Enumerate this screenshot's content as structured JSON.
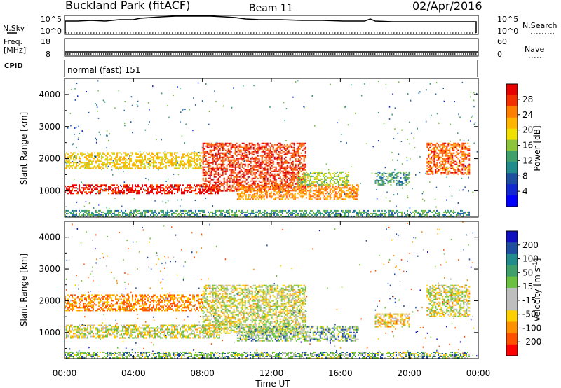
{
  "header": {
    "site": "Buckland Park (fitACF)",
    "beam": "Beam 11",
    "date": "02/Apr/2016"
  },
  "top_strip": {
    "left_label": "N.Sky",
    "left_ticks": [
      "10^5",
      "10^0"
    ],
    "right_ticks": [
      "10^5",
      "10^0"
    ],
    "right_label": "N.Search"
  },
  "freq_strip": {
    "left_label_1": "Freq.",
    "left_label_2": "[MHz]",
    "left_ticks": [
      "18",
      "8"
    ],
    "right_ticks": [
      "60",
      "0"
    ],
    "right_label": "Nave"
  },
  "cpid": {
    "label": "CPID",
    "value": "normal (fast) 151"
  },
  "power_panel": {
    "ylabel": "Slant Range [km]",
    "y_ticks": [
      "4000",
      "3000",
      "2000",
      "1000"
    ],
    "colorbar_label": "Power [dB]",
    "colorbar_ticks": [
      "28",
      "24",
      "20",
      "16",
      "12",
      "8",
      "4"
    ],
    "colorbar_colors": [
      "#e60000",
      "#f23000",
      "#ff8000",
      "#ffb400",
      "#f0e000",
      "#8cc43c",
      "#3fa06a",
      "#228b8b",
      "#1f4ea0",
      "#1428d0",
      "#0000ff"
    ]
  },
  "velocity_panel": {
    "ylabel": "Slant Range [km]",
    "y_ticks": [
      "4000",
      "3000",
      "2000",
      "1000"
    ],
    "colorbar_label": "Velocity [m s",
    "colorbar_unit_sup": "-1",
    "colorbar_label_end": "]",
    "colorbar_ticks": [
      "200",
      "100",
      "50",
      "15",
      "-15",
      "-50",
      "-100",
      "-200"
    ],
    "colorbar_colors": [
      "#1010c0",
      "#1f4ea0",
      "#228b8b",
      "#3fa06a",
      "#6cc040",
      "#bebebe",
      "#bebebe",
      "#ffd000",
      "#ff9000",
      "#ff5000",
      "#ff0000"
    ]
  },
  "x_axis": {
    "ticks": [
      "00:00",
      "04:00",
      "08:00",
      "12:00",
      "16:00",
      "20:00",
      "00:00"
    ],
    "label": "Time UT"
  },
  "chart_data": [
    {
      "type": "heatmap",
      "title": "Power [dB]",
      "xlabel": "Time UT",
      "ylabel": "Slant Range [km]",
      "xlim": [
        "00:00",
        "24:00"
      ],
      "ylim": [
        180,
        4500
      ],
      "colorbar_ticks": [
        4,
        8,
        12,
        16,
        20,
        24,
        28
      ],
      "echo_regions": [
        {
          "t_start": 0.0,
          "t_end": 9.0,
          "range_km": [
            900,
            1200
          ],
          "power_db": 28
        },
        {
          "t_start": 0.0,
          "t_end": 8.0,
          "range_km": [
            1700,
            2200
          ],
          "power_db": 18
        },
        {
          "t_start": 8.0,
          "t_end": 14.0,
          "range_km": [
            1000,
            2500
          ],
          "power_db": 26
        },
        {
          "t_start": 10.0,
          "t_end": 17.0,
          "range_km": [
            750,
            1200
          ],
          "power_db": 22
        },
        {
          "t_start": 13.5,
          "t_end": 16.5,
          "range_km": [
            1200,
            1600
          ],
          "power_db": 14
        },
        {
          "t_start": 18.0,
          "t_end": 20.0,
          "range_km": [
            1200,
            1600
          ],
          "power_db": 10
        },
        {
          "t_start": 21.0,
          "t_end": 23.5,
          "range_km": [
            1500,
            2500
          ],
          "power_db": 24
        },
        {
          "t_start": 0.0,
          "t_end": 23.5,
          "range_km": [
            200,
            400
          ],
          "power_db": 10
        }
      ]
    },
    {
      "type": "heatmap",
      "title": "Velocity [m s-1]",
      "xlabel": "Time UT",
      "ylabel": "Slant Range [km]",
      "xlim": [
        "00:00",
        "24:00"
      ],
      "ylim": [
        180,
        4500
      ],
      "colorbar_ticks": [
        -200,
        -100,
        -50,
        -15,
        15,
        50,
        100,
        200
      ],
      "echo_regions": [
        {
          "t_start": 0.0,
          "t_end": 9.0,
          "range_km": [
            850,
            1250
          ],
          "velocity": 0
        },
        {
          "t_start": 0.0,
          "t_end": 8.0,
          "range_km": [
            1700,
            2200
          ],
          "velocity": -80
        },
        {
          "t_start": 8.0,
          "t_end": 14.0,
          "range_km": [
            1000,
            2500
          ],
          "velocity": 0
        },
        {
          "t_start": 10.0,
          "t_end": 17.0,
          "range_km": [
            750,
            1200
          ],
          "velocity": 40
        },
        {
          "t_start": 18.0,
          "t_end": 20.0,
          "range_km": [
            1200,
            1600
          ],
          "velocity": -40
        },
        {
          "t_start": 21.0,
          "t_end": 23.5,
          "range_km": [
            1500,
            2500
          ],
          "velocity": 0
        },
        {
          "t_start": 0.0,
          "t_end": 23.5,
          "range_km": [
            200,
            400
          ],
          "velocity": 40
        }
      ]
    }
  ]
}
